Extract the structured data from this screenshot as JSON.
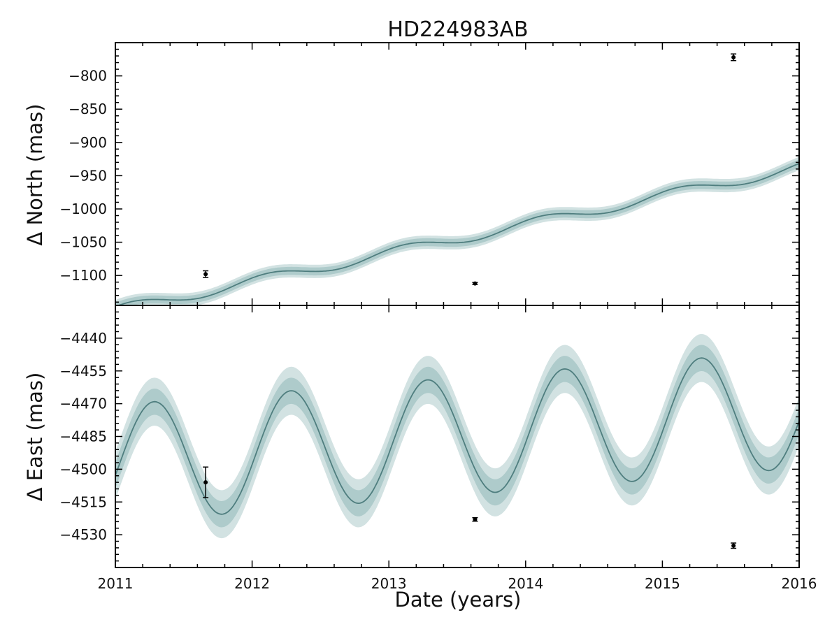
{
  "chart_data": [
    {
      "panel": "top",
      "type": "line",
      "title": "HD224983AB",
      "ylabel": "Δ North (mas)",
      "xlim": [
        2011,
        2016
      ],
      "ylim": [
        -1145,
        -750
      ],
      "yticks": [
        -1100,
        -1050,
        -1000,
        -950,
        -900,
        -850,
        -800
      ],
      "model": {
        "offset": -1045,
        "slope": 43,
        "amplitude": 8,
        "period": 1.0,
        "phase": 0.8,
        "band_inner": 6,
        "band_outer": 10
      },
      "observations": [
        {
          "x": 2011.66,
          "y": -1098,
          "yerr": 5
        },
        {
          "x": 2013.63,
          "y": -1112,
          "yerr": 1.5
        },
        {
          "x": 2015.52,
          "y": -772,
          "yerr": 5
        }
      ],
      "colors": {
        "line": "#4f7e7f",
        "band_inner": "#aecbcb",
        "band_outer": "#d2e2e2"
      }
    },
    {
      "panel": "bottom",
      "type": "line",
      "xlabel": "Date (years)",
      "ylabel": "Δ East (mas)",
      "xlim": [
        2011,
        2016
      ],
      "ylim": [
        -4545,
        -4425
      ],
      "xticks": [
        2011,
        2012,
        2013,
        2014,
        2015,
        2016
      ],
      "yticks": [
        -4530,
        -4515,
        -4500,
        -4485,
        -4470,
        -4455,
        -4440
      ],
      "model": {
        "offset": -4485,
        "slope": 5,
        "amplitude": 27,
        "period": 1.0,
        "phase": -0.2,
        "band_inner": 6,
        "band_outer": 11
      },
      "observations": [
        {
          "x": 2011.66,
          "y": -4506,
          "yerr": 7
        },
        {
          "x": 2013.63,
          "y": -4523,
          "yerr": 0.8
        },
        {
          "x": 2015.52,
          "y": -4535,
          "yerr": 1.2
        }
      ],
      "colors": {
        "line": "#4f7e7f",
        "band_inner": "#aecbcb",
        "band_outer": "#d2e2e2"
      }
    }
  ]
}
